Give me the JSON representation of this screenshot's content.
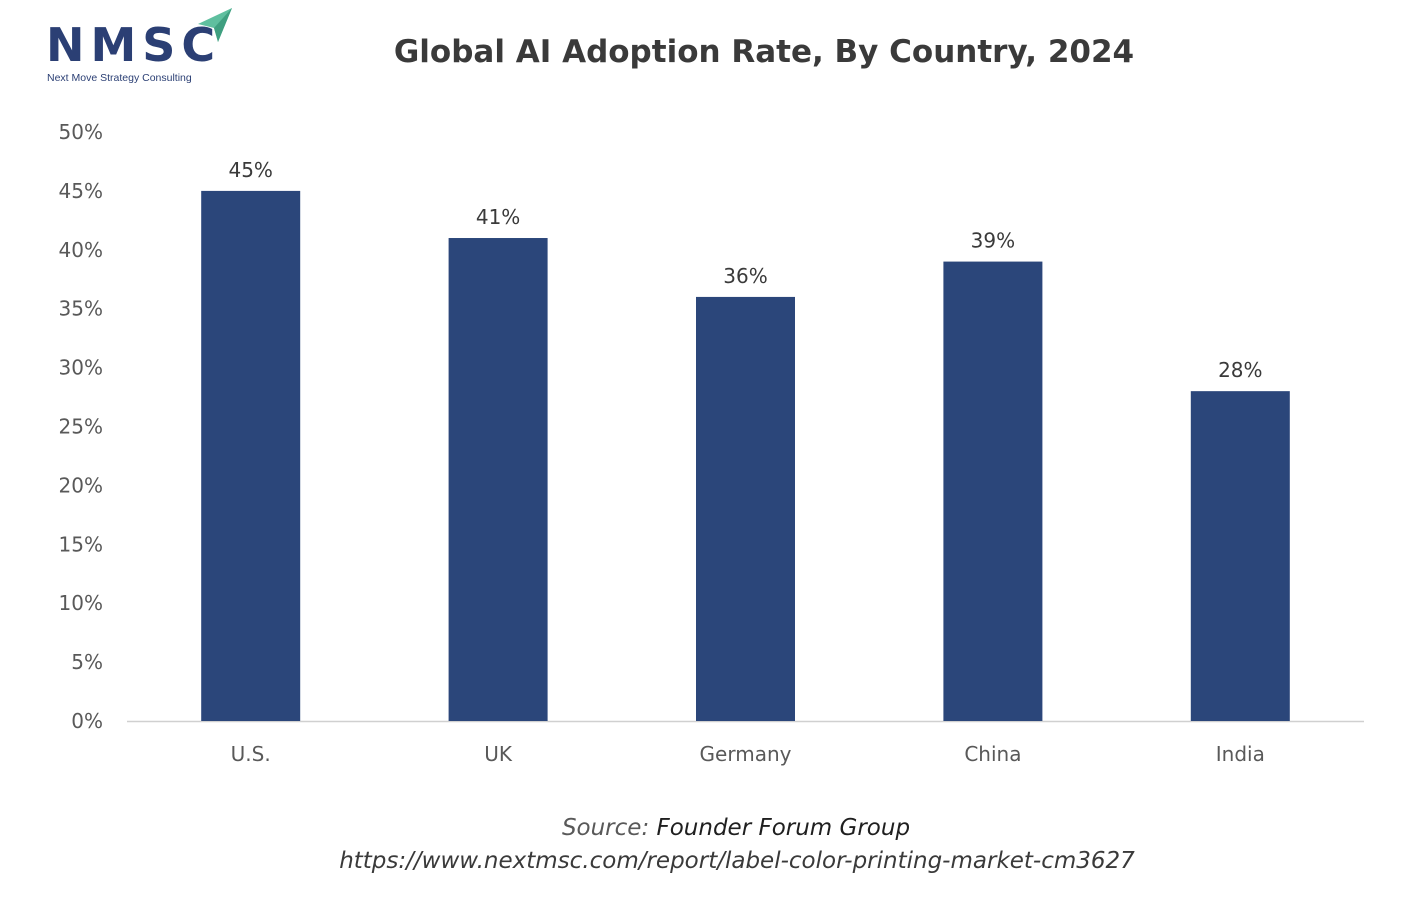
{
  "logo": {
    "name": "NMSC",
    "tagline": "Next Move Strategy Consulting",
    "primary_color": "#2b3f74",
    "accent_color": "#5fbf9f"
  },
  "chart_data": {
    "type": "bar",
    "title": "Global AI Adoption Rate, By Country, 2024",
    "xlabel": "",
    "ylabel": "",
    "categories": [
      "U.S.",
      "UK",
      "Germany",
      "China",
      "India"
    ],
    "values": [
      45,
      41,
      36,
      39,
      28
    ],
    "data_labels": [
      "45%",
      "41%",
      "36%",
      "39%",
      "28%"
    ],
    "ylim": [
      0,
      50
    ],
    "y_ticks": [
      0,
      5,
      10,
      15,
      20,
      25,
      30,
      35,
      40,
      45,
      50
    ],
    "y_tick_labels": [
      "0%",
      "5%",
      "10%",
      "15%",
      "20%",
      "25%",
      "30%",
      "35%",
      "40%",
      "45%",
      "50%"
    ],
    "bar_color": "#2b467a",
    "grid": false,
    "legend": "none"
  },
  "source": {
    "label": "Source:",
    "value": "Founder Forum Group",
    "url": "https://www.nextmsc.com/report/label-color-printing-market-cm3627"
  }
}
